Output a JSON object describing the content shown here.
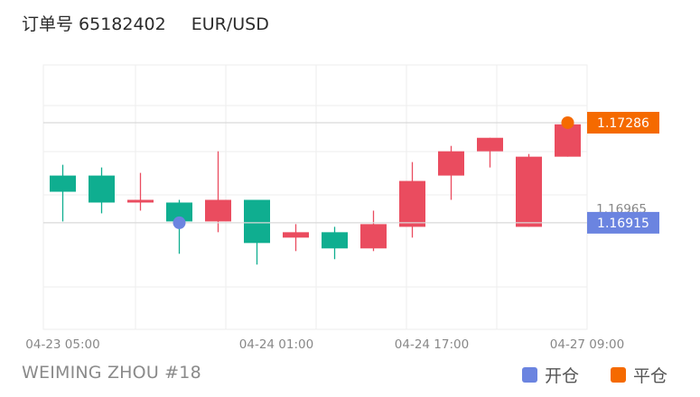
{
  "header": {
    "order_label": "订单号",
    "order_number": "65182402",
    "symbol": "EUR/USD"
  },
  "footer": {
    "author": "WEIMING ZHOU #18"
  },
  "legend": {
    "open_label": "开仓",
    "close_label": "平仓",
    "open_color": "#6b84e0",
    "close_color": "#f56a00"
  },
  "colors": {
    "up": "#ea4c5f",
    "down": "#0fae90",
    "grid": "#eeeeee"
  },
  "chart_data": {
    "type": "candlestick",
    "ylim": [
      1.1652,
      1.175
    ],
    "x_ticks": [
      {
        "index": 0,
        "label": "04-23 05:00"
      },
      {
        "index": 5.5,
        "label": "04-24 01:00"
      },
      {
        "index": 9.5,
        "label": "04-24 17:00"
      },
      {
        "index": 13.5,
        "label": "04-27 09:00"
      }
    ],
    "candles": [
      {
        "o": 1.1709,
        "h": 1.1713,
        "l": 1.1692,
        "c": 1.1703
      },
      {
        "o": 1.1709,
        "h": 1.1712,
        "l": 1.1695,
        "c": 1.1699
      },
      {
        "o": 1.1699,
        "h": 1.171,
        "l": 1.1696,
        "c": 1.17
      },
      {
        "o": 1.1699,
        "h": 1.17,
        "l": 1.168,
        "c": 1.1692
      },
      {
        "o": 1.1692,
        "h": 1.1718,
        "l": 1.1688,
        "c": 1.17
      },
      {
        "o": 1.17,
        "h": 1.17,
        "l": 1.1676,
        "c": 1.1684
      },
      {
        "o": 1.1686,
        "h": 1.1691,
        "l": 1.1681,
        "c": 1.1688
      },
      {
        "o": 1.1688,
        "h": 1.169,
        "l": 1.1678,
        "c": 1.1682
      },
      {
        "o": 1.1682,
        "h": 1.1696,
        "l": 1.1681,
        "c": 1.1691
      },
      {
        "o": 1.169,
        "h": 1.1714,
        "l": 1.1686,
        "c": 1.1707
      },
      {
        "o": 1.1709,
        "h": 1.172,
        "l": 1.17,
        "c": 1.1718
      },
      {
        "o": 1.1718,
        "h": 1.1723,
        "l": 1.1712,
        "c": 1.1723
      },
      {
        "o": 1.169,
        "h": 1.1717,
        "l": 1.169,
        "c": 1.1716
      },
      {
        "o": 1.1716,
        "h": 1.1729,
        "l": 1.1716,
        "c": 1.1728
      }
    ],
    "open_marker": {
      "index": 3,
      "price": 1.16915
    },
    "close_marker": {
      "index": 13,
      "price": 1.17286
    },
    "price_lines": [
      {
        "price": 1.17286,
        "label": "1.17286",
        "style": "close"
      },
      {
        "price": 1.16965,
        "label": "1.16965",
        "style": "plain"
      },
      {
        "price": 1.16915,
        "label": "1.16915",
        "style": "open"
      }
    ]
  }
}
